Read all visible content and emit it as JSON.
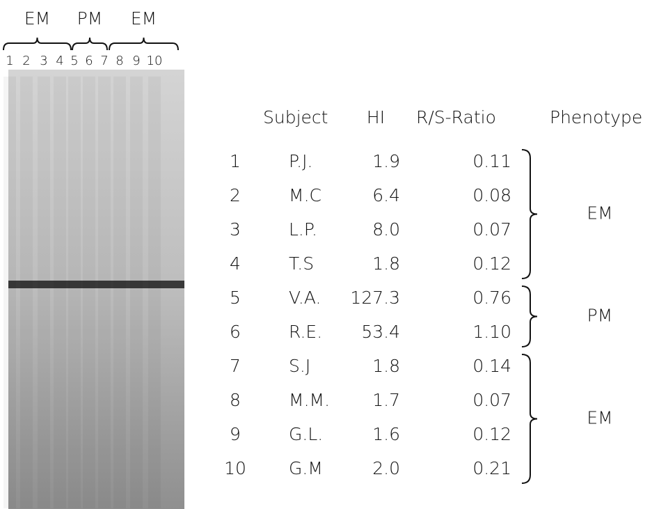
{
  "gel": {
    "groups": [
      "EM",
      "PM",
      "EM"
    ],
    "lanes": [
      "1",
      "2",
      "3",
      "4",
      "5",
      "6",
      "7",
      "8",
      "9",
      "10"
    ]
  },
  "table": {
    "headers": [
      "Subject",
      "HI",
      "R/S-Ratio",
      "Phenotype"
    ],
    "rows": [
      [
        "1",
        "P.J.",
        "1.9",
        "0.11"
      ],
      [
        "2",
        "M.C",
        "6.4",
        "0.08"
      ],
      [
        "3",
        "L.P.",
        "8.0",
        "0.07"
      ],
      [
        "4",
        "T.S",
        "1.8",
        "0.12"
      ],
      [
        "5",
        "V.A.",
        "127.3",
        "0.76"
      ],
      [
        "6",
        "R.E.",
        "53.4",
        "1.10"
      ],
      [
        "7",
        "S.J",
        "1.8",
        "0.14"
      ],
      [
        "8",
        "M.M.",
        "1.7",
        "0.07"
      ],
      [
        "9",
        "G.L.",
        "1.6",
        "0.12"
      ],
      [
        "10",
        "G.M",
        "2.0",
        "0.21"
      ]
    ],
    "phenotypes": [
      "EM",
      "PM",
      "EM"
    ]
  }
}
